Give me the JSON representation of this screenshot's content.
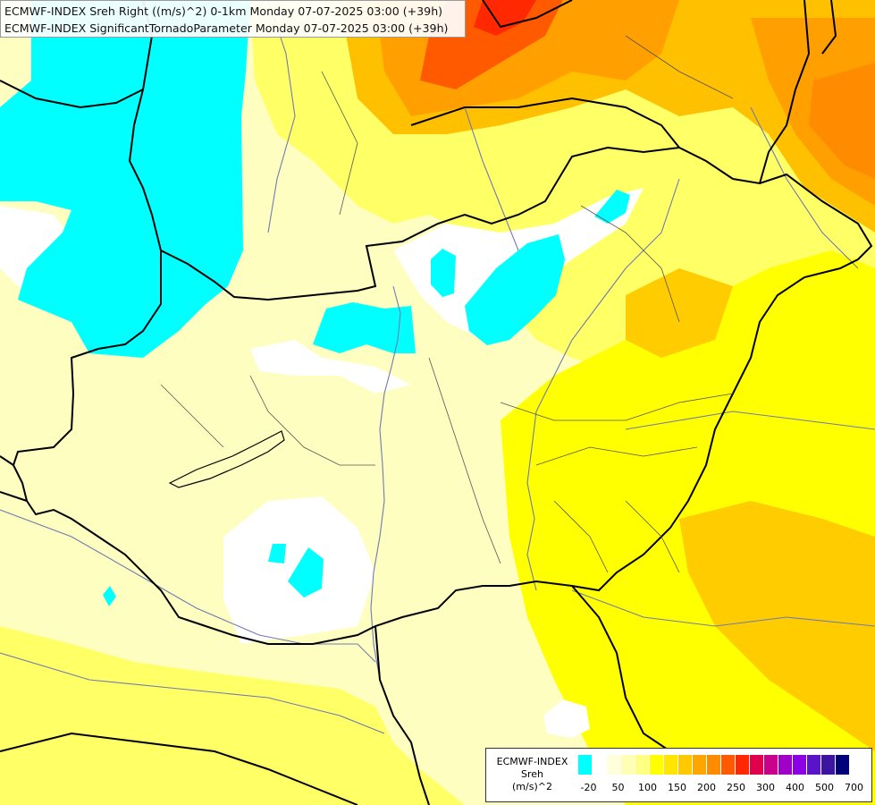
{
  "map": {
    "title_line1": "ECMWF-INDEX Sreh Right ((m/s)^2) 0-1km Monday 07-07-2025 03:00 (+39h)",
    "title_line2": "ECMWF-INDEX SignificantTornadoParameter Monday 07-07-2025 03:00 (+39h)"
  },
  "legend": {
    "title_line1": "ECMWF-INDEX",
    "title_line2": "Sreh",
    "title_line3": "(m/s)^2",
    "colors": [
      "#00ffff",
      "#ffffff",
      "#ffffdc",
      "#ffffb4",
      "#ffff82",
      "#ffff00",
      "#ffe600",
      "#ffc800",
      "#ffa500",
      "#ff8c00",
      "#ff5a00",
      "#ff2800",
      "#e1004b",
      "#c8008c",
      "#a000c8",
      "#8c00e6",
      "#5a14c8",
      "#3c14a0",
      "#000078"
    ],
    "ticks": [
      "-20",
      "50",
      "100",
      "150",
      "200",
      "250",
      "300",
      "400",
      "500",
      "700"
    ]
  },
  "colors": {
    "background": "#fefec0",
    "cyan": "#00ffff",
    "yellow": "#ffff33",
    "orange": "#ffc000",
    "red_orange": "#ff6a00",
    "border": "#000000",
    "river": "#6f7bb0"
  }
}
